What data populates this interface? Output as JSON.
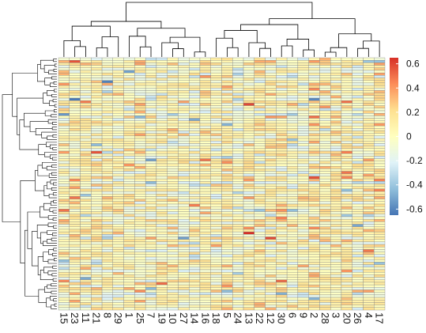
{
  "chart_data": {
    "type": "heatmap",
    "title": "",
    "xlabel": "",
    "ylabel": "",
    "columns": [
      "15",
      "23",
      "11",
      "21",
      "8",
      "29",
      "1",
      "25",
      "7",
      "19",
      "10",
      "27",
      "14",
      "16",
      "18",
      "5",
      "24",
      "13",
      "22",
      "12",
      "30",
      "6",
      "9",
      "2",
      "28",
      "3",
      "20",
      "26",
      "4",
      "17"
    ],
    "row_count": 100,
    "row_labels_shown": false,
    "value_range": [
      -0.65,
      0.65
    ],
    "colorbar_ticks": [
      "0.6",
      "0.4",
      "0.2",
      "0",
      "-0.2",
      "-0.4",
      "-0.6"
    ],
    "colorbar_tick_values": [
      0.6,
      0.4,
      0.2,
      0,
      -0.2,
      -0.4,
      -0.6
    ],
    "colormap": [
      "#4575b4",
      "#91bfdb",
      "#e0f3f8",
      "#ffffbf",
      "#fee090",
      "#fc8d59",
      "#d73027"
    ],
    "cell_border_color": "#7f7f7f",
    "dendrograms": [
      "top (columns)",
      "left (rows)"
    ],
    "legend_position": "right",
    "grid": false
  }
}
